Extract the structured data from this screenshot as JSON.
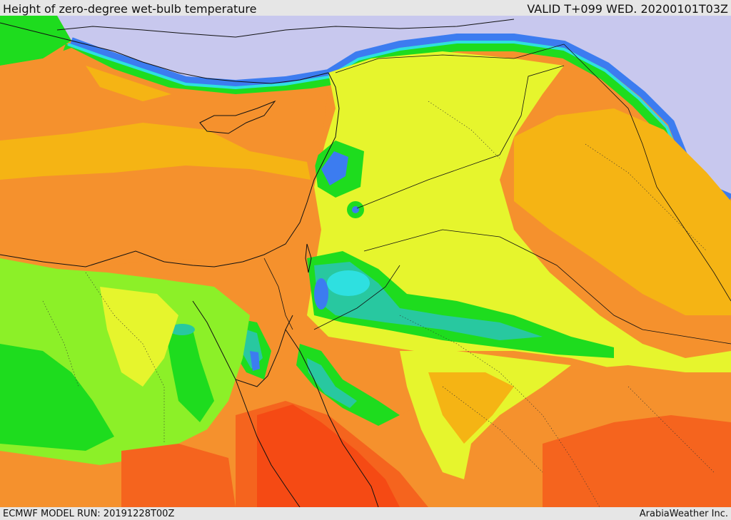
{
  "header": {
    "title": "Height of zero-degree wet-bulb temperature",
    "valid": "VALID T+099 WED. 20200101T03Z"
  },
  "footer": {
    "model_run": "ECMWF MODEL RUN: 20191228T00Z",
    "credit": "ArabiaWeather Inc."
  },
  "palette": {
    "violet": "#c8c8ee",
    "blue": "#3c7cf0",
    "cyan": "#2ee0e0",
    "teal": "#28c8a0",
    "green": "#1edc1e",
    "lime": "#8cf028",
    "yellow": "#e6f52d",
    "gold": "#f5b414",
    "orange": "#f5912d",
    "red_orange": "#f5641e",
    "red": "#f54a14"
  }
}
